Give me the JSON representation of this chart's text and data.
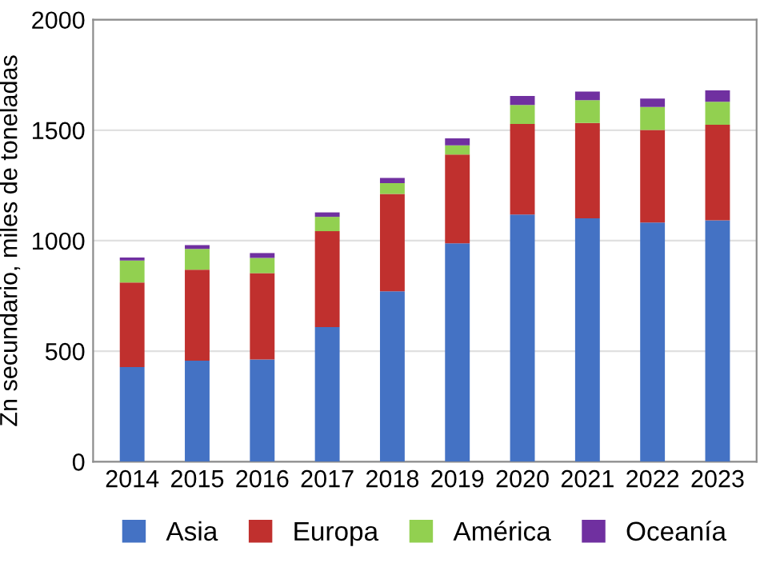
{
  "chart_data": {
    "type": "bar",
    "stacked": true,
    "ylabel": "Zn secundario, miles de toneladas",
    "categories": [
      "2014",
      "2015",
      "2016",
      "2017",
      "2018",
      "2019",
      "2020",
      "2021",
      "2022",
      "2023"
    ],
    "series": [
      {
        "name": "Asia",
        "color": "#4472c4",
        "values": [
          428,
          457,
          462,
          609,
          771,
          988,
          1118,
          1101,
          1082,
          1092
        ]
      },
      {
        "name": "Europa",
        "color": "#c0302e",
        "values": [
          383,
          412,
          391,
          434,
          441,
          402,
          410,
          432,
          419,
          433
        ]
      },
      {
        "name": "América",
        "color": "#92d050",
        "values": [
          99,
          94,
          69,
          65,
          48,
          41,
          86,
          103,
          104,
          104
        ]
      },
      {
        "name": "Oceanía",
        "color": "#7030a0",
        "values": [
          14,
          17,
          22,
          20,
          24,
          32,
          41,
          39,
          38,
          51
        ]
      }
    ],
    "ylim": [
      0,
      2000
    ],
    "yticks": [
      0,
      500,
      1000,
      1500,
      2000
    ],
    "grid": "y",
    "legend": "bottom"
  }
}
